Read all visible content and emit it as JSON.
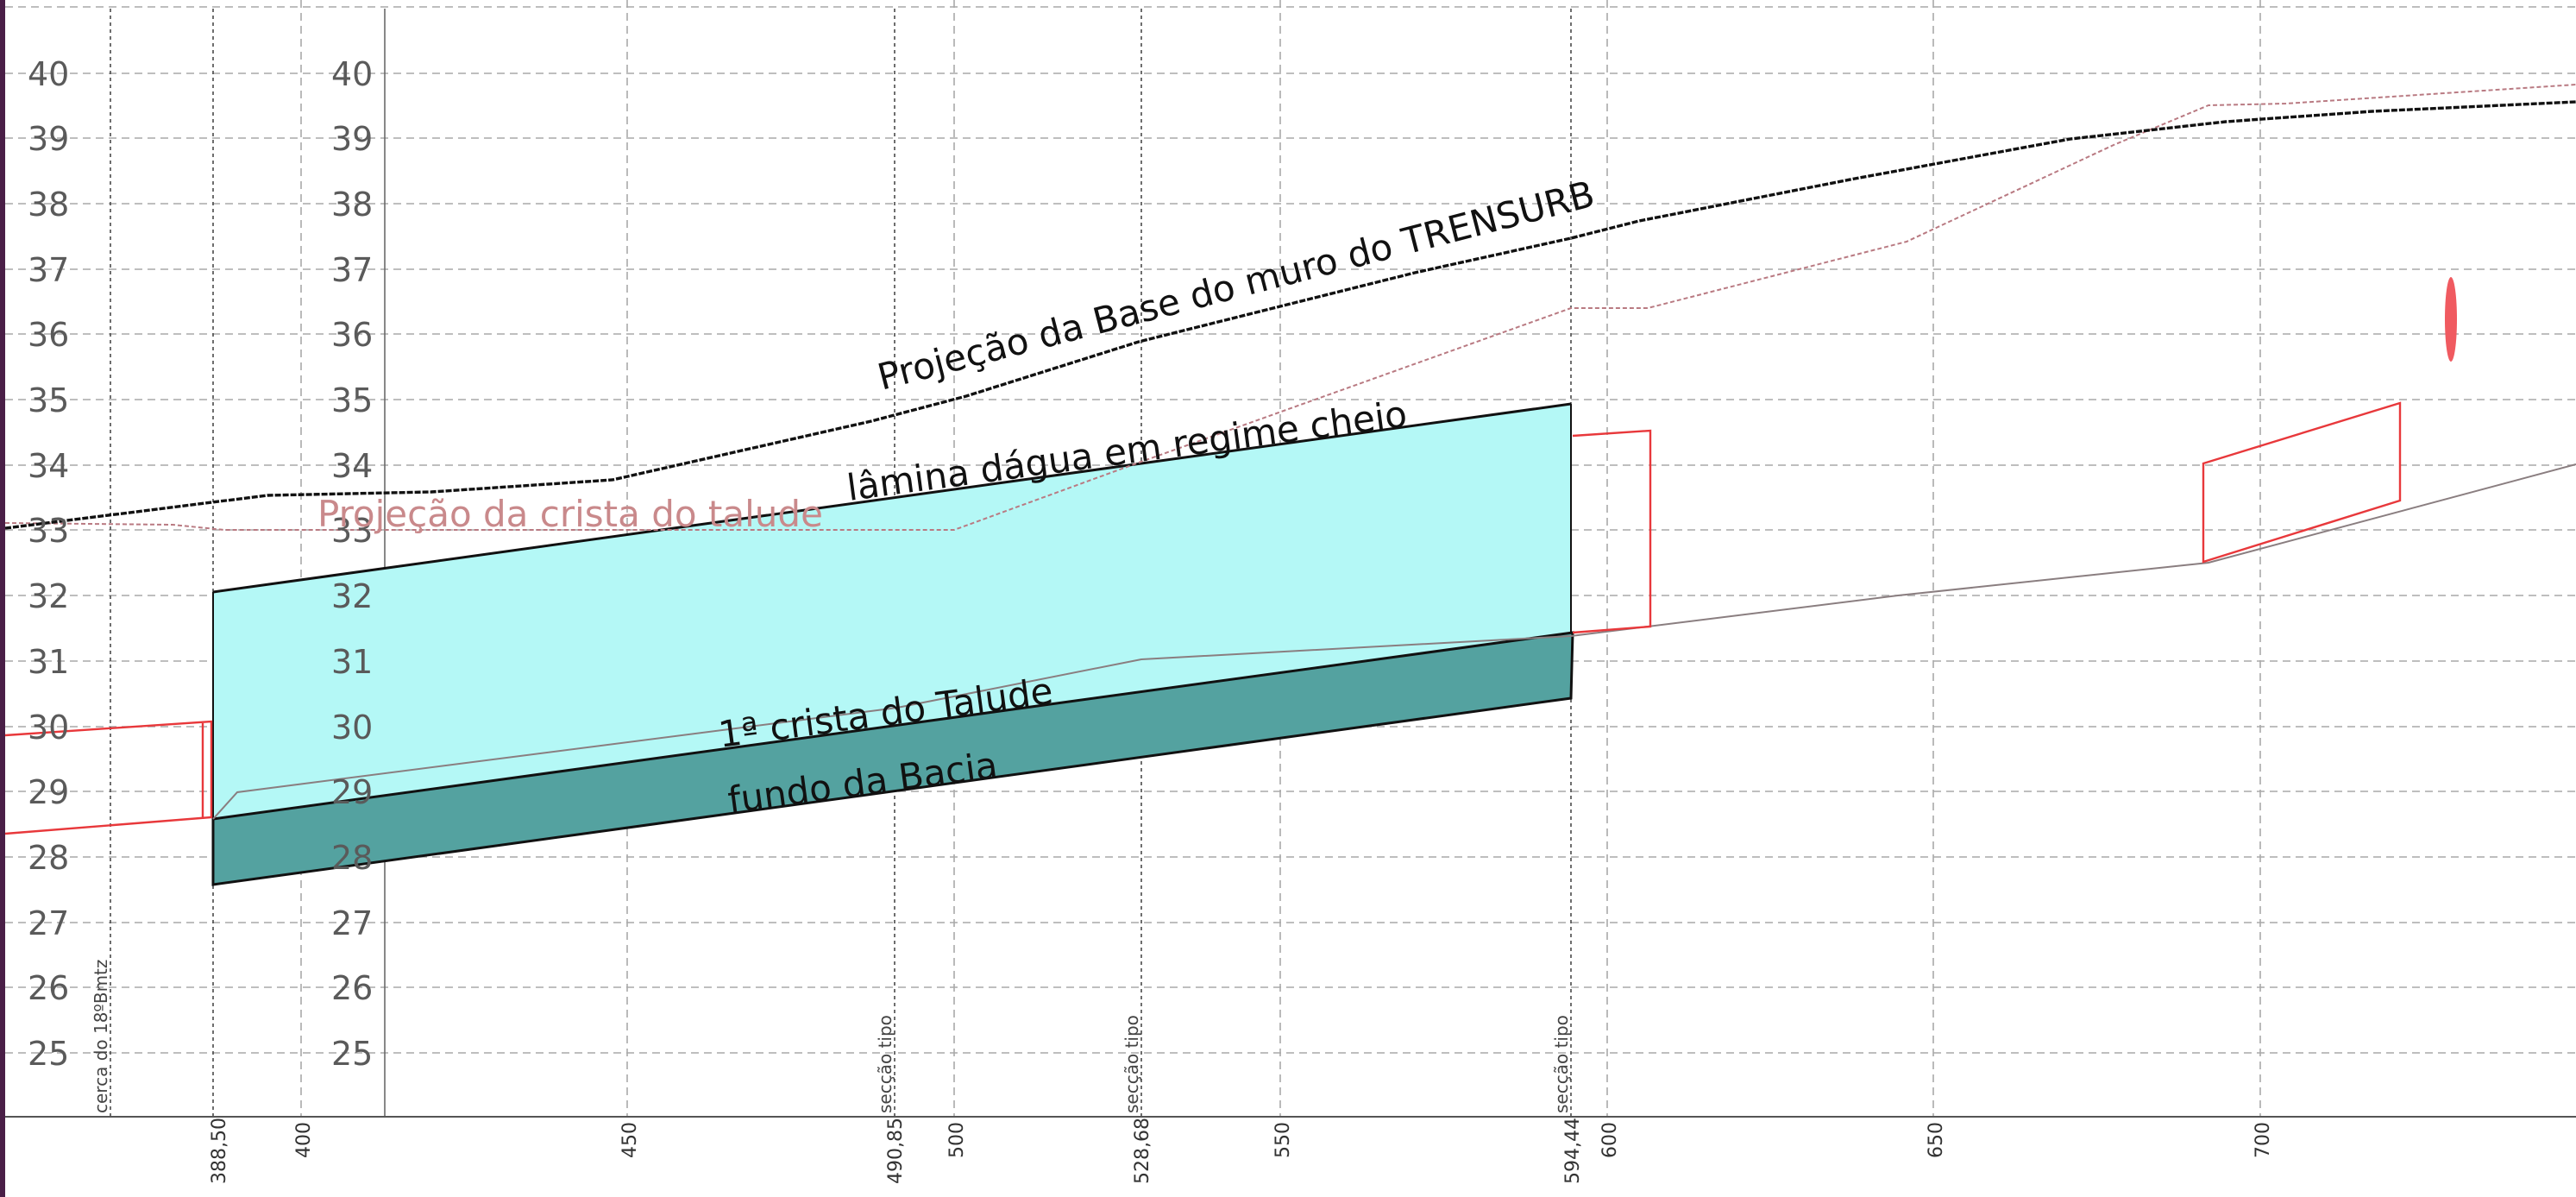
{
  "drawing": {
    "elevation_labels": [
      "40",
      "39",
      "38",
      "37",
      "36",
      "35",
      "34",
      "33",
      "32",
      "31",
      "30",
      "29",
      "28",
      "27",
      "26",
      "25"
    ],
    "station_labels": [
      "388,50",
      "400",
      "450",
      "490,85",
      "500",
      "528,68",
      "550",
      "594,44",
      "600",
      "650",
      "700"
    ],
    "vertical_texts": [
      "cerca do 18ºBmtz",
      "secção tipo",
      "secção tipo",
      "secção tipo"
    ],
    "annotations": {
      "wall_base": "Projeção da Base do muro do TRENSURB",
      "water_level": "lâmina dágua em regime cheio",
      "slope_crest_projection": "Projeção da crista do talude",
      "first_crest": "1ª crista do Talude",
      "basin_bottom": "fundo da Bacia"
    },
    "colors": {
      "water_fill": "#b4f8f6",
      "basin_fill": "#54a2a0",
      "grid": "#a9a9a9",
      "red_outline": "#e8383b",
      "pink_line": "#b97a82",
      "frame_left": "#4a1f47"
    }
  }
}
